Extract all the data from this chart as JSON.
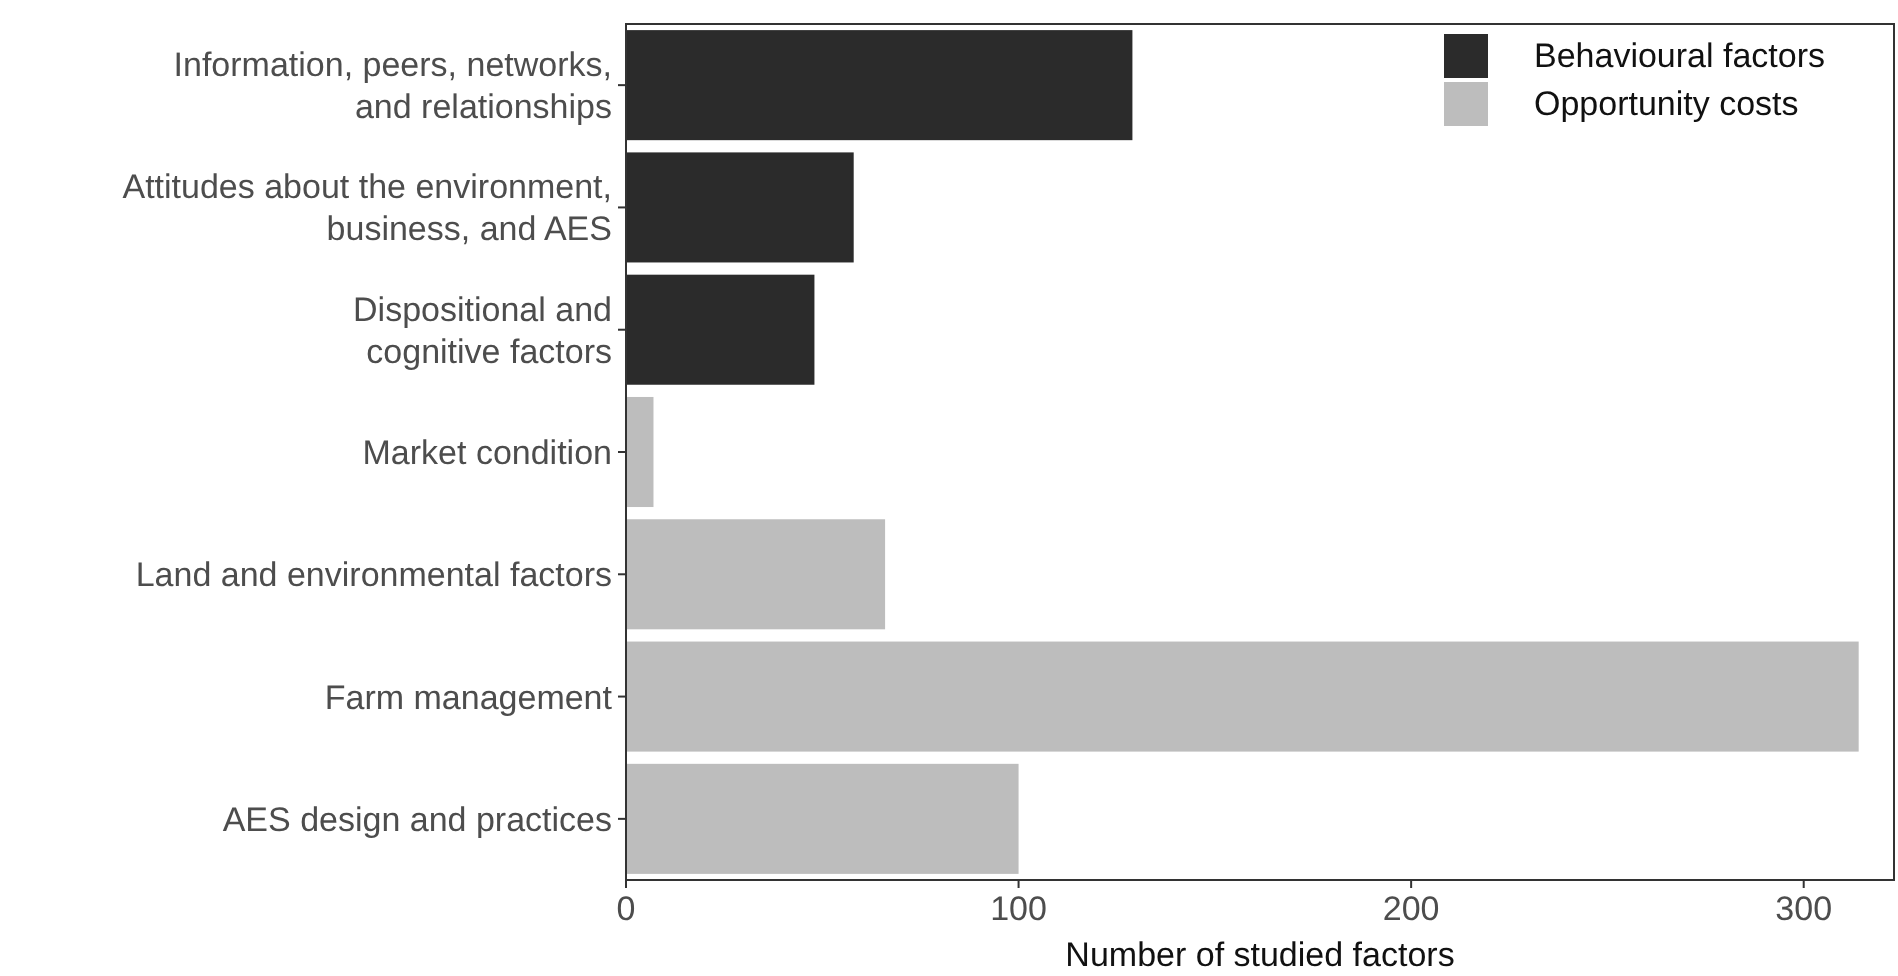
{
  "chart_data": {
    "type": "bar",
    "orientation": "horizontal",
    "categories": [
      "Information, peers, networks,\nand relationships",
      "Attitudes about the environment,\nbusiness, and AES",
      "Dispositional and\ncognitive factors",
      "Market condition",
      "Land and environmental factors",
      "Farm management",
      "AES design and practices"
    ],
    "series": [
      {
        "name": "Behavioural factors",
        "color": "#2b2b2b",
        "values": [
          129,
          58,
          48,
          null,
          null,
          null,
          null
        ]
      },
      {
        "name": "Opportunity costs",
        "color": "#bdbdbd",
        "values": [
          null,
          null,
          null,
          7,
          66,
          314,
          100
        ]
      }
    ],
    "xlim": [
      0,
      323
    ],
    "xticks": [
      0,
      100,
      200,
      300
    ],
    "xlabel": "Number of studied factors",
    "grid": false,
    "legend": "top right"
  }
}
